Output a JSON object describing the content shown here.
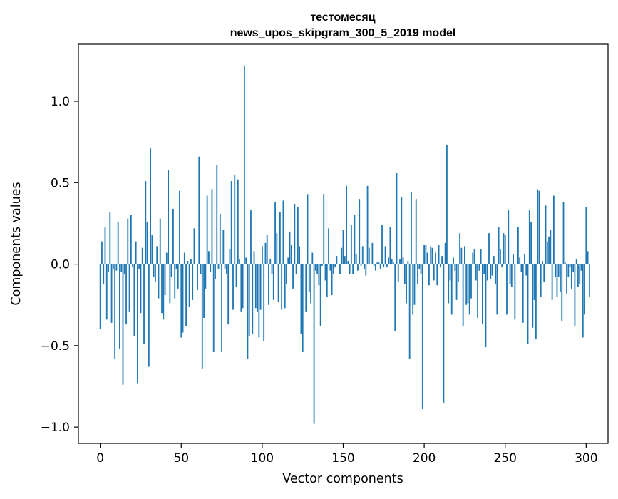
{
  "figure": {
    "title_line1": "тестомесяц",
    "title_line2": "news_upos_skipgram_300_5_2019 model"
  },
  "chart_data": {
    "type": "bar",
    "title": "тестомесяц\nnews_upos_skipgram_300_5_2019 model",
    "xlabel": "Vector components",
    "ylabel": "Components values",
    "xlim": [
      -13.5,
      313.5
    ],
    "ylim": [
      -1.1,
      1.35
    ],
    "xticks": [
      0,
      50,
      100,
      150,
      200,
      250,
      300
    ],
    "xtick_labels": [
      "0",
      "50",
      "100",
      "150",
      "200",
      "250",
      "300"
    ],
    "yticks": [
      -1.0,
      -0.5,
      0.0,
      0.5,
      1.0
    ],
    "ytick_labels": [
      "−1.0",
      "−0.5",
      "0.0",
      "0.5",
      "1.0"
    ],
    "grid": false,
    "bar_color": "#1f77b4",
    "x_start": 0,
    "values": [
      -0.4,
      0.14,
      -0.12,
      0.23,
      -0.34,
      -0.05,
      0.32,
      -0.36,
      -0.03,
      -0.58,
      -0.04,
      0.26,
      -0.52,
      -0.05,
      -0.74,
      -0.06,
      -0.37,
      0.28,
      -0.29,
      0.3,
      -0.02,
      -0.44,
      0.14,
      -0.73,
      -0.03,
      -0.3,
      0.1,
      -0.49,
      0.51,
      0.26,
      -0.63,
      0.71,
      0.18,
      -0.08,
      -0.11,
      0.11,
      -0.21,
      0.28,
      -0.3,
      -0.34,
      -0.19,
      0.07,
      0.58,
      -0.24,
      -0.08,
      0.34,
      -0.21,
      -0.03,
      -0.15,
      0.45,
      -0.45,
      -0.42,
      0.07,
      -0.38,
      0.02,
      -0.26,
      0.03,
      -0.22,
      0.22,
      0.0,
      -0.16,
      0.66,
      -0.06,
      -0.64,
      -0.33,
      -0.15,
      0.42,
      0.08,
      -0.05,
      0.46,
      -0.54,
      -0.09,
      0.61,
      -0.03,
      0.31,
      -0.54,
      0.21,
      -0.03,
      -0.06,
      -0.37,
      0.09,
      0.51,
      -0.28,
      0.55,
      -0.14,
      0.52,
      0.03,
      -0.29,
      -0.27,
      1.22,
      0.04,
      -0.58,
      -0.44,
      0.33,
      -0.43,
      0.08,
      -0.27,
      -0.29,
      -0.45,
      -0.28,
      0.11,
      -0.47,
      0.13,
      0.18,
      -0.25,
      0.03,
      -0.06,
      -0.22,
      0.38,
      0.19,
      -0.23,
      0.32,
      -0.28,
      0.39,
      -0.27,
      -0.12,
      0.04,
      0.2,
      0.12,
      -0.15,
      0.37,
      -0.06,
      0.35,
      0.11,
      -0.43,
      -0.54,
      0.0,
      -0.29,
      0.43,
      -0.17,
      -0.24,
      0.07,
      -0.98,
      -0.04,
      -0.06,
      -0.13,
      -0.38,
      -0.01,
      0.43,
      -0.1,
      -0.2,
      0.22,
      -0.04,
      -0.19,
      -0.06,
      -0.02,
      0.05,
      0.0,
      -0.06,
      0.1,
      0.21,
      0.05,
      0.48,
      0.02,
      -0.06,
      0.24,
      -0.06,
      0.3,
      0.06,
      -0.04,
      0.4,
      -0.01,
      0.11,
      -0.03,
      -0.07,
      0.48,
      0.1,
      0.0,
      0.13,
      -0.01,
      -0.04,
      0.01,
      0.01,
      -0.03,
      0.24,
      -0.02,
      0.11,
      -0.02,
      0.04,
      0.23,
      0.03,
      0.01,
      -0.41,
      0.56,
      -0.11,
      0.03,
      0.41,
      0.04,
      -0.12,
      -0.24,
      0.02,
      -0.58,
      0.44,
      -0.31,
      -0.25,
      0.4,
      -0.12,
      -0.03,
      -0.06,
      -0.89,
      0.12,
      0.12,
      0.07,
      -0.13,
      0.11,
      0.1,
      -0.1,
      0.07,
      -0.13,
      0.12,
      -0.02,
      0.05,
      -0.85,
      0.13,
      0.73,
      -0.24,
      -0.1,
      -0.31,
      0.04,
      -0.04,
      -0.22,
      -0.11,
      0.19,
      0.1,
      -0.38,
      0.11,
      -0.25,
      -0.24,
      -0.31,
      -0.21,
      0.07,
      0.09,
      -0.1,
      -0.33,
      -0.04,
      0.09,
      -0.37,
      -0.06,
      -0.51,
      -0.1,
      0.19,
      -0.09,
      -0.07,
      0.05,
      -0.12,
      -0.31,
      0.23,
      0.09,
      -0.02,
      0.19,
      0.18,
      -0.31,
      0.33,
      -0.12,
      -0.14,
      0.06,
      -0.34,
      0.0,
      0.23,
      0.04,
      -0.05,
      -0.36,
      0.06,
      -0.07,
      -0.49,
      0.33,
      0.26,
      -0.39,
      -0.22,
      -0.46,
      0.46,
      0.45,
      -0.2,
      0.02,
      -0.11,
      0.36,
      0.14,
      0.17,
      0.21,
      -0.22,
      0.42,
      -0.08,
      -0.2,
      -0.08,
      -0.17,
      -0.35,
      0.38,
      0.01,
      -0.18,
      -0.08,
      -0.02,
      -0.15,
      -0.05,
      -0.38,
      0.03,
      -0.14,
      -0.12,
      -0.04,
      -0.45,
      -0.31,
      0.35,
      0.08,
      -0.2
    ]
  }
}
